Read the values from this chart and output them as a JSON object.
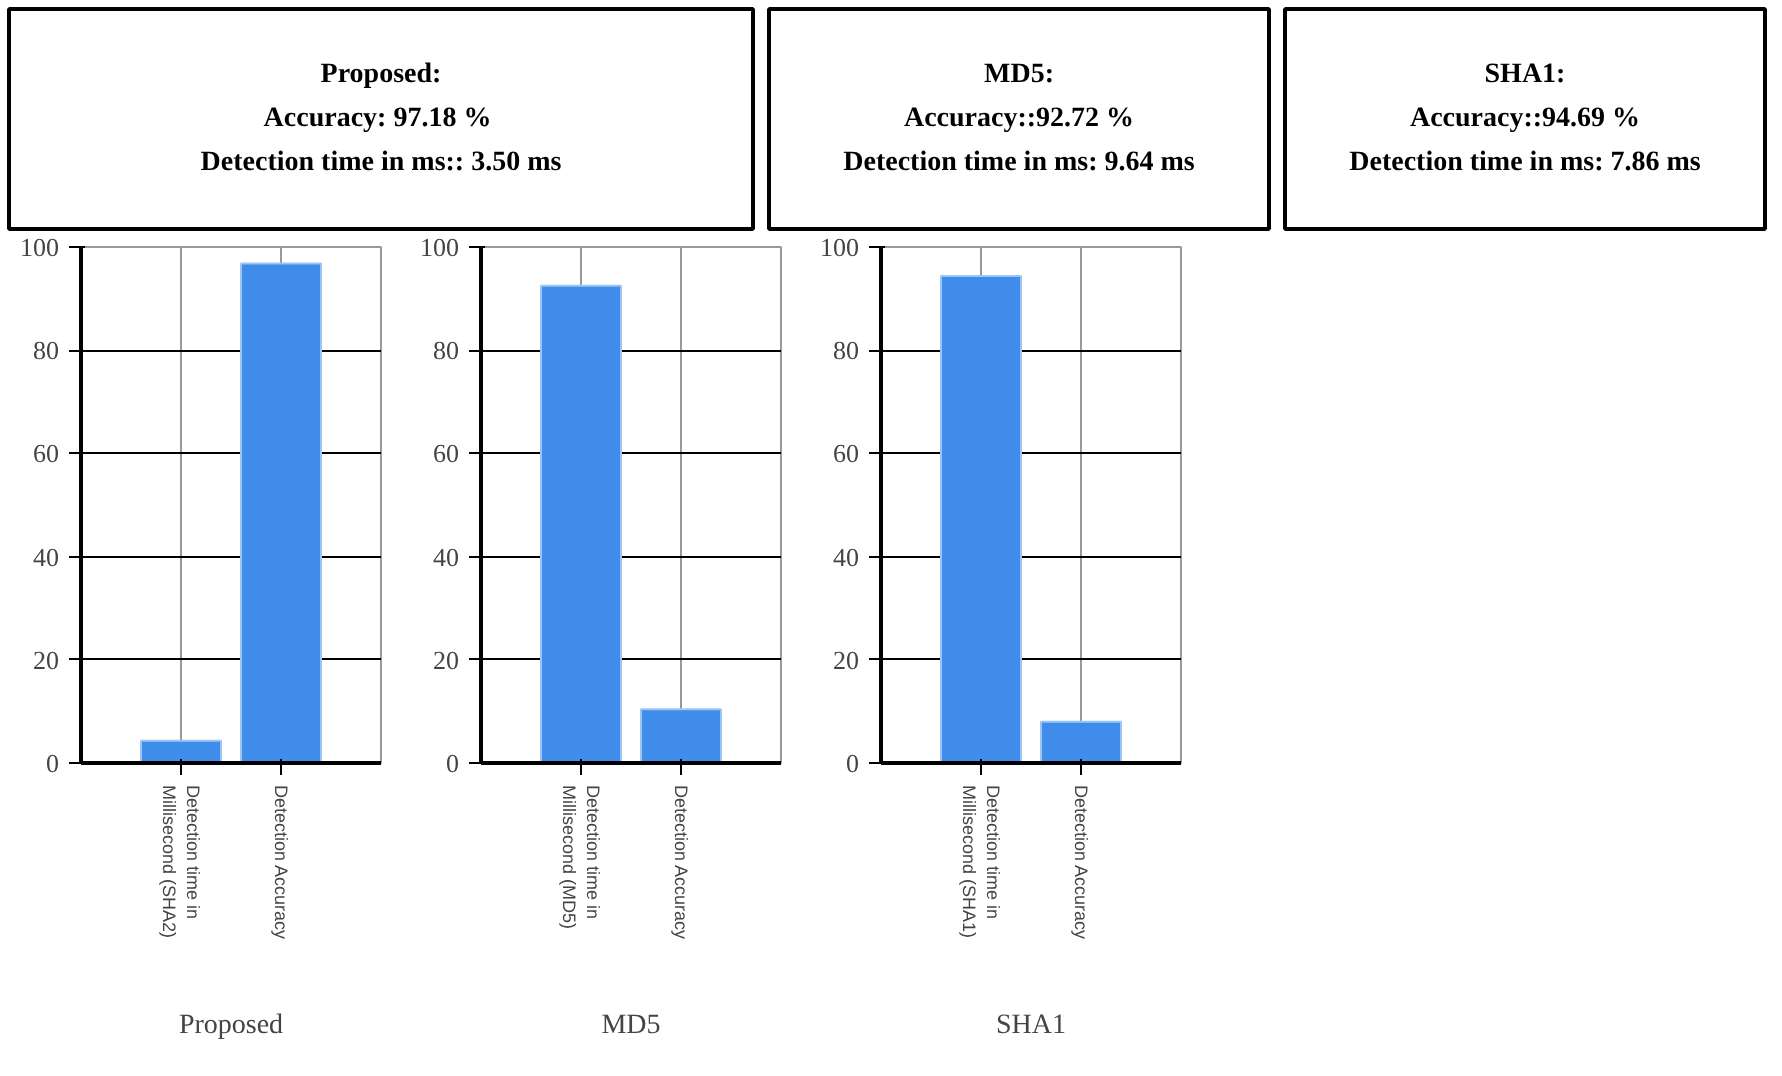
{
  "chart_data": [
    {
      "type": "other",
      "title": "Proposed:",
      "annotations": [
        "Accuracy:  97.18 %",
        "Detection time in ms:: 3.50 ms"
      ]
    },
    {
      "type": "other",
      "title": "MD5:",
      "annotations": [
        "Accuracy::92.72 %",
        "Detection time in ms: 9.64 ms"
      ]
    },
    {
      "type": "other",
      "title": "SHA1:",
      "annotations": [
        "Accuracy::94.69 %",
        "Detection time in ms: 7.86 ms"
      ]
    },
    {
      "type": "bar",
      "xlabel": "Proposed",
      "categories": [
        "Detection time in\nMillisecond (SHA2)",
        "Detection  Accuracy"
      ],
      "values": [
        4.3,
        96.8
      ],
      "color": "#3f8ceb",
      "ylim": [
        0,
        100
      ],
      "yticks": [
        0,
        20,
        40,
        60,
        80,
        100
      ],
      "grid": true
    },
    {
      "type": "bar",
      "xlabel": "MD5",
      "categories": [
        "Detection time in\nMillisecond (MD5)",
        "Detection  Accuracy"
      ],
      "values": [
        92.5,
        10.4
      ],
      "color": "#3f8ceb",
      "ylim": [
        0,
        100
      ],
      "yticks": [
        0,
        20,
        40,
        60,
        80,
        100
      ],
      "grid": true
    },
    {
      "type": "bar",
      "xlabel": "SHA1",
      "categories": [
        "Detection time in\nMillisecond (SHA1)",
        "Detection  Accuracy"
      ],
      "values": [
        94.4,
        8.0
      ],
      "color": "#3f8ceb",
      "ylim": [
        0,
        100
      ],
      "yticks": [
        0,
        20,
        40,
        60,
        80,
        100
      ],
      "grid": true
    }
  ]
}
